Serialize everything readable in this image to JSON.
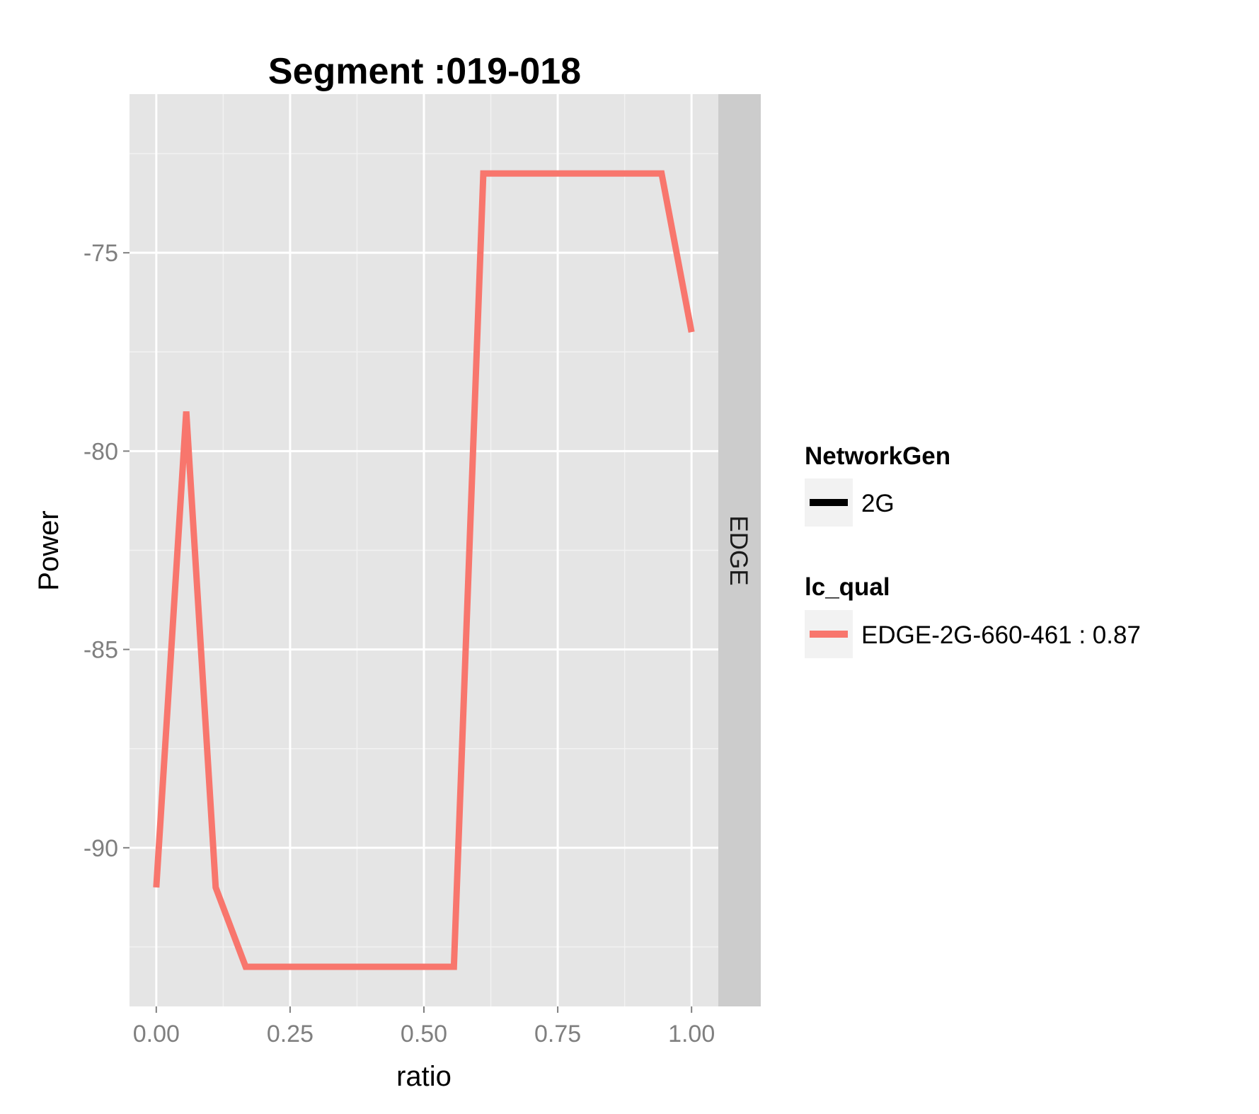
{
  "chart_data": {
    "type": "line",
    "title": "Segment :019-018",
    "xlabel": "ratio",
    "ylabel": "Power",
    "xlim": [
      -0.05,
      1.05
    ],
    "ylim": [
      -94,
      -71
    ],
    "x_ticks": [
      0.0,
      0.25,
      0.5,
      0.75,
      1.0
    ],
    "x_tick_labels": [
      "0.00",
      "0.25",
      "0.50",
      "0.75",
      "1.00"
    ],
    "y_ticks": [
      -90,
      -85,
      -80,
      -75
    ],
    "y_tick_labels": [
      "-90",
      "-85",
      "-80",
      "-75"
    ],
    "grid": true,
    "facet_label": "EDGE",
    "legend_position": "right",
    "legends": [
      {
        "title": "NetworkGen",
        "items": [
          {
            "label": "2G",
            "color": "#000000"
          }
        ]
      },
      {
        "title": "lc_qual",
        "items": [
          {
            "label": "EDGE-2G-660-461 : 0.87",
            "color": "#F8766D"
          }
        ]
      }
    ],
    "series": [
      {
        "name": "EDGE-2G-660-461 : 0.87",
        "color": "#F8766D",
        "x": [
          0.0,
          0.056,
          0.111,
          0.167,
          0.556,
          0.611,
          0.944,
          1.0
        ],
        "y": [
          -91,
          -79,
          -91,
          -93,
          -93,
          -73,
          -73,
          -77
        ]
      }
    ]
  }
}
